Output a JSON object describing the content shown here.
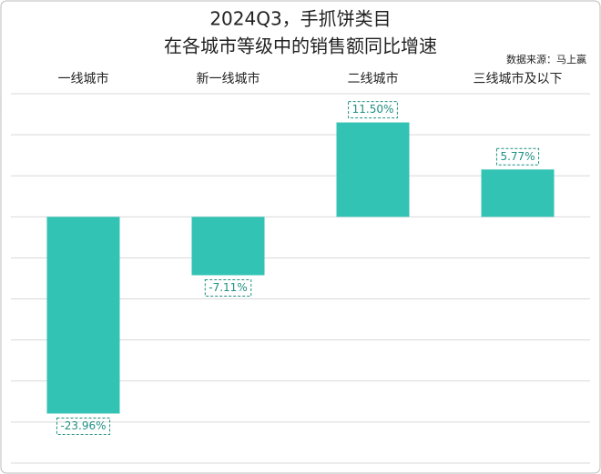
{
  "chart_data": {
    "type": "bar",
    "title": "2024Q3，手抓饼类目",
    "subtitle": "在各城市等级中的销售额同比增速",
    "source": "数据来源：马上赢",
    "categories": [
      "一线城市",
      "新一线城市",
      "二线城市",
      "三线城市及以下"
    ],
    "values": [
      -23.96,
      -7.11,
      11.5,
      5.77
    ],
    "value_labels": [
      "-23.96%",
      "-7.11%",
      "11.50%",
      "5.77%"
    ],
    "color": "#33c3b4",
    "ylim": [
      -30,
      15
    ],
    "yticks": [
      -30,
      -25,
      -20,
      -15,
      -10,
      -5,
      0,
      5,
      10,
      15
    ],
    "grid": true
  }
}
